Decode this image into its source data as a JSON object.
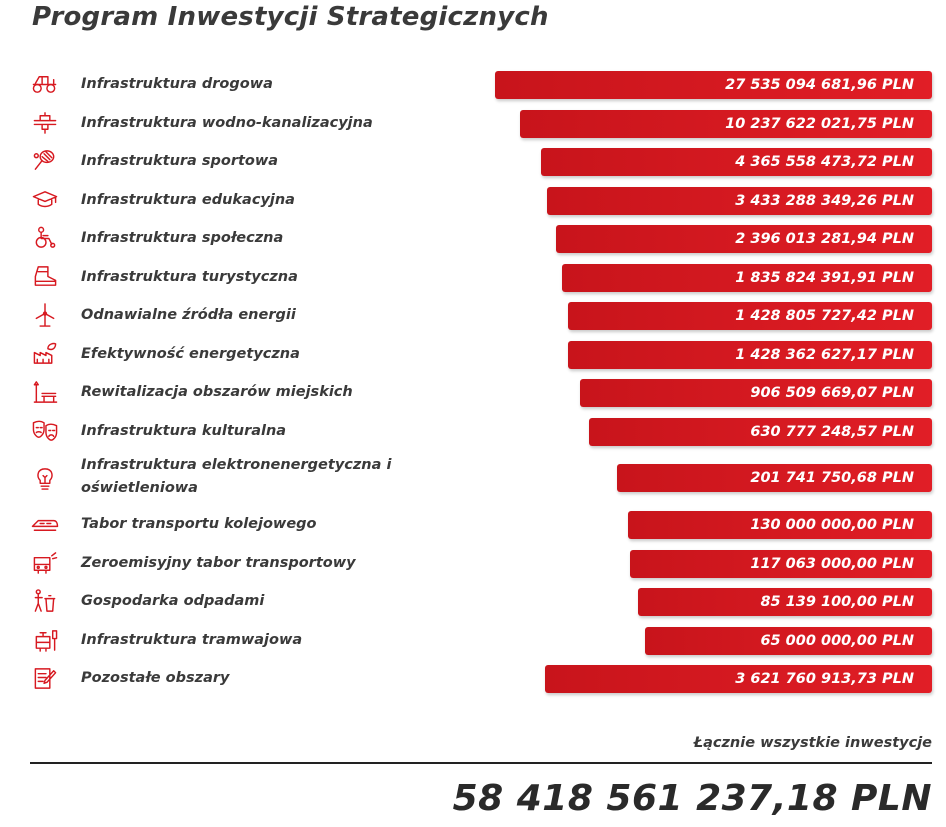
{
  "chart_data": {
    "type": "bar",
    "title": "Program Inwestycji Strategicznych",
    "categories": [
      "Infrastruktura drogowa",
      "Infrastruktura wodno-kanalizacyjna",
      "Infrastruktura sportowa",
      "Infrastruktura edukacyjna",
      "Infrastruktura społeczna",
      "Infrastruktura turystyczna",
      "Odnawialne źródła energii",
      "Efektywność energetyczna",
      "Rewitalizacja obszarów miejskich",
      "Infrastruktura kulturalna",
      "Infrastruktura elektronenergetyczna i oświetleniowa",
      "Tabor transportu kolejowego",
      "Zeroemisyjny tabor transportowy",
      "Gospodarka odpadami",
      "Infrastruktura tramwajowa",
      "Pozostałe obszary"
    ],
    "values": [
      27535094681.96,
      10237622021.75,
      4365558473.72,
      3433288349.26,
      2396013281.94,
      1835824391.91,
      1428805727.42,
      1428362627.17,
      906509669.07,
      630777248.57,
      201741750.68,
      130000000.0,
      117063000.0,
      85139100.0,
      65000000.0,
      3621760913.73
    ],
    "value_labels": [
      "27 535 094 681,96 PLN",
      "10 237 622 021,75 PLN",
      "4 365 558 473,72 PLN",
      "3 433 288 349,26 PLN",
      "2 396 013 281,94 PLN",
      "1 835 824 391,91 PLN",
      "1 428 805 727,42 PLN",
      "1 428 362 627,17 PLN",
      "906 509 669,07 PLN",
      "630 777 248,57 PLN",
      "201 741 750,68 PLN",
      "130 000 000,00 PLN",
      "117 063 000,00 PLN",
      "85 139 100,00 PLN",
      "65 000 000,00 PLN",
      "3 621 760 913,73 PLN"
    ],
    "icons": [
      "tractor-icon",
      "water-pipe-icon",
      "tennis-racket-icon",
      "graduation-cap-icon",
      "wheelchair-icon",
      "hiking-boot-icon",
      "wind-turbine-icon",
      "factory-leaf-icon",
      "street-lamp-bench-icon",
      "theater-masks-icon",
      "light-bulb-icon",
      "train-icon",
      "bus-icon",
      "waste-bin-person-icon",
      "tram-icon",
      "document-pencil-icon"
    ],
    "xlabel": "",
    "ylabel": "",
    "bar_color": "#d71920",
    "grid": false,
    "legend": "none"
  },
  "total": {
    "label": "Łącznie wszystkie inwestycje",
    "value": "58 418 561 237,18 PLN"
  }
}
